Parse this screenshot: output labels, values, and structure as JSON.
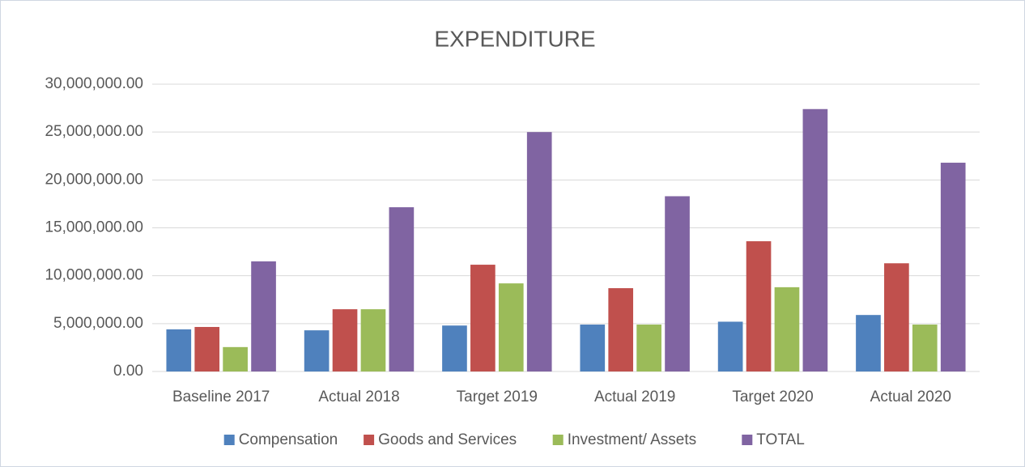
{
  "chart_data": {
    "type": "bar",
    "title": "EXPENDITURE",
    "categories": [
      "Baseline 2017",
      "Actual  2018",
      "Target  2019",
      "Actual  2019",
      "Target  2020",
      "Actual  2020"
    ],
    "series": [
      {
        "name": "Compensation",
        "color": "#4f81bd",
        "values": [
          4400000,
          4300000,
          4800000,
          4900000,
          5200000,
          5900000
        ]
      },
      {
        "name": "Goods and Services",
        "color": "#c0504d",
        "values": [
          4650000,
          6500000,
          11150000,
          8700000,
          13600000,
          11300000
        ]
      },
      {
        "name": "Investment/ Assets",
        "color": "#9bbb59",
        "values": [
          2550000,
          6500000,
          9200000,
          4900000,
          8800000,
          4900000
        ]
      },
      {
        "name": "TOTAL",
        "color": "#8064a2",
        "values": [
          11500000,
          17150000,
          25000000,
          18300000,
          27400000,
          21800000
        ]
      }
    ],
    "ylim": [
      0,
      30000000
    ],
    "yticks": [
      {
        "value": 0,
        "label": "0.00"
      },
      {
        "value": 5000000,
        "label": "5,000,000.00"
      },
      {
        "value": 10000000,
        "label": "10,000,000.00"
      },
      {
        "value": 15000000,
        "label": "15,000,000.00"
      },
      {
        "value": 20000000,
        "label": "20,000,000.00"
      },
      {
        "value": 25000000,
        "label": "25,000,000.00"
      },
      {
        "value": 30000000,
        "label": "30,000,000.00"
      }
    ],
    "grid": true,
    "legend": "bottom"
  }
}
